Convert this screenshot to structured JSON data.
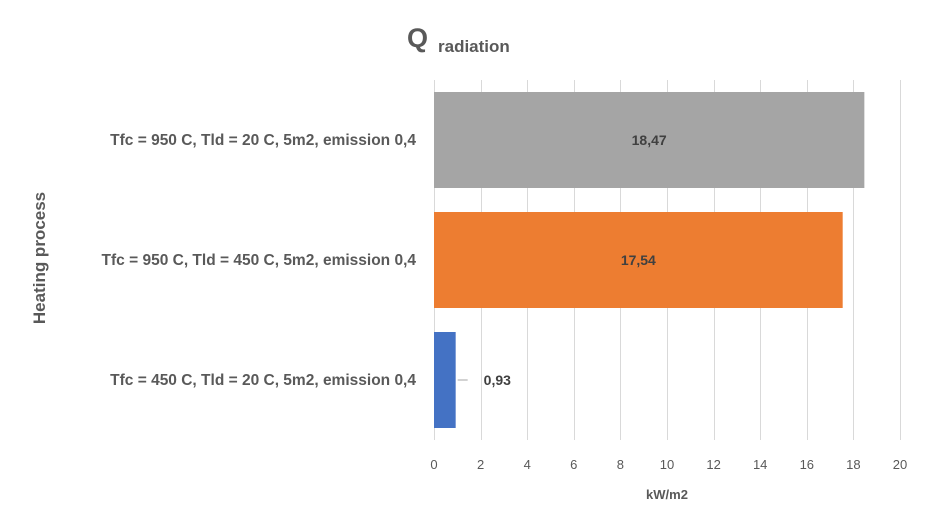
{
  "chart_data": {
    "type": "bar",
    "orientation": "horizontal",
    "title": {
      "main": "Q",
      "subscript": "radiation"
    },
    "xlabel": "kW/m2",
    "ylabel": "Heating process",
    "xlim": [
      0,
      20
    ],
    "xticks": [
      0,
      2,
      4,
      6,
      8,
      10,
      12,
      14,
      16,
      18,
      20
    ],
    "grid": true,
    "categories": [
      "Tfc = 950 C, Tld = 20 C, 5m2, emission 0,4",
      "Tfc = 950 C, Tld = 450 C, 5m2, emission 0,4",
      "Tfc = 450 C, Tld = 20 C, 5m2, emission 0,4"
    ],
    "values": [
      18.47,
      17.54,
      0.93
    ],
    "value_labels": [
      "18,47",
      "17,54",
      "0,93"
    ],
    "colors": [
      "#a5a5a5",
      "#ed7d31",
      "#4472c4"
    ]
  }
}
